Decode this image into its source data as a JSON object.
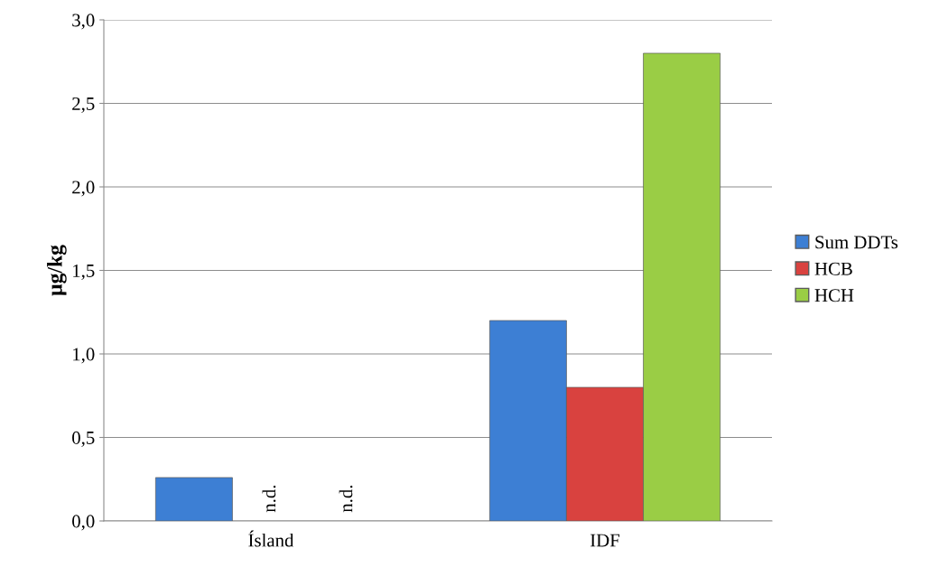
{
  "chart_data": {
    "type": "bar",
    "ylabel": "µg/kg",
    "categories": [
      "Ísland",
      "IDF"
    ],
    "series": [
      {
        "name": "Sum DDTs",
        "color": "#3d7fd4",
        "values": [
          0.26,
          1.2
        ]
      },
      {
        "name": "HCB",
        "color": "#d9423f",
        "values": [
          null,
          0.8
        ],
        "value_labels": [
          "n.d.",
          null
        ]
      },
      {
        "name": "HCH",
        "color": "#9acd45",
        "values": [
          null,
          2.8
        ],
        "value_labels": [
          "n.d.",
          null
        ]
      }
    ],
    "ylim": [
      0,
      3
    ],
    "yticks": [
      {
        "value": 0,
        "label": "0,0"
      },
      {
        "value": 0.5,
        "label": "0,5"
      },
      {
        "value": 1,
        "label": "1,0"
      },
      {
        "value": 1.5,
        "label": "1,5"
      },
      {
        "value": 2,
        "label": "2,0"
      },
      {
        "value": 2.5,
        "label": "2,5"
      },
      {
        "value": 3,
        "label": "3,0"
      }
    ],
    "grid": "y",
    "legend": "right"
  }
}
